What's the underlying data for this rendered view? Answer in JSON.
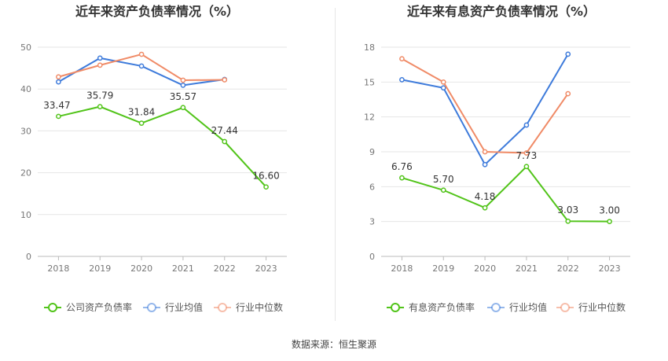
{
  "source_label": "数据来源：恒生聚源",
  "chart_data": [
    {
      "type": "line",
      "title": "近年来资产负债率情况（%）",
      "categories": [
        "2018",
        "2019",
        "2020",
        "2021",
        "2022",
        "2023"
      ],
      "ylim": [
        0,
        50
      ],
      "yticks": [
        0,
        10,
        20,
        30,
        40,
        50
      ],
      "grid": true,
      "legend": "bottom",
      "series": [
        {
          "name": "公司资产负债率",
          "color": "#52c41a",
          "values": [
            33.47,
            35.79,
            31.84,
            35.57,
            27.44,
            16.6
          ],
          "labels": [
            "33.47",
            "35.79",
            "31.84",
            "35.57",
            "27.44",
            "16.60"
          ]
        },
        {
          "name": "行业均值",
          "color": "#3e7bdb",
          "values": [
            41.7,
            47.4,
            45.5,
            40.9,
            42.3,
            null
          ]
        },
        {
          "name": "行业中位数",
          "color": "#f08b67",
          "values": [
            42.9,
            45.7,
            48.3,
            42.1,
            42.2,
            null
          ]
        }
      ]
    },
    {
      "type": "line",
      "title": "近年来有息资产负债率情况（%）",
      "categories": [
        "2018",
        "2019",
        "2020",
        "2021",
        "2022",
        "2023"
      ],
      "ylim": [
        0,
        18
      ],
      "yticks": [
        0,
        3,
        6,
        9,
        12,
        15,
        18
      ],
      "grid": true,
      "legend": "bottom",
      "series": [
        {
          "name": "有息资产负债率",
          "color": "#52c41a",
          "values": [
            6.76,
            5.7,
            4.18,
            7.73,
            3.03,
            3.0
          ],
          "labels": [
            "6.76",
            "5.70",
            "4.18",
            "7.73",
            "3.03",
            "3.00"
          ]
        },
        {
          "name": "行业均值",
          "color": "#3e7bdb",
          "values": [
            15.2,
            14.5,
            7.9,
            11.3,
            17.4,
            null
          ]
        },
        {
          "name": "行业中位数",
          "color": "#f08b67",
          "values": [
            17.0,
            15.0,
            9.0,
            8.9,
            14.0,
            null
          ]
        }
      ]
    }
  ]
}
